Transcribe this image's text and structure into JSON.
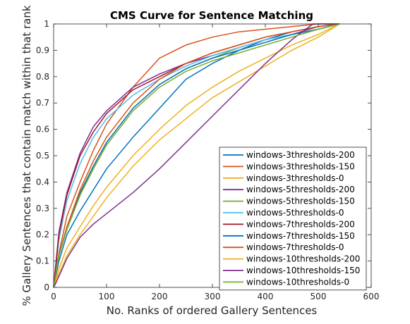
{
  "chart_data": {
    "type": "line",
    "title": "CMS Curve for Sentence Matching",
    "xlabel": "No. Ranks of ordered Gallery Sentences",
    "ylabel": "% Gallery Sentences that contain match within that rank",
    "xlim": [
      0,
      600
    ],
    "ylim": [
      0,
      1
    ],
    "xticks": [
      0,
      100,
      200,
      300,
      400,
      500,
      600
    ],
    "yticks": [
      0,
      0.1,
      0.2,
      0.3,
      0.4,
      0.5,
      0.6,
      0.7,
      0.8,
      0.9,
      1
    ],
    "xtick_labels": [
      "0",
      "100",
      "200",
      "300",
      "400",
      "500",
      "600"
    ],
    "ytick_labels": [
      "0",
      "0.1",
      "0.2",
      "0.3",
      "0.4",
      "0.5",
      "0.6",
      "0.7",
      "0.8",
      "0.9",
      "1"
    ],
    "grid": false,
    "legend_position": "bottom-right",
    "series": [
      {
        "name": "windows-3thresholds-200",
        "color": "#0072BD",
        "x": [
          0,
          10,
          25,
          50,
          75,
          100,
          150,
          200,
          250,
          300,
          350,
          400,
          450,
          500,
          540
        ],
        "y": [
          0,
          0.1,
          0.2,
          0.29,
          0.37,
          0.45,
          0.57,
          0.68,
          0.79,
          0.85,
          0.9,
          0.94,
          0.97,
          0.99,
          1
        ]
      },
      {
        "name": "windows-3thresholds-150",
        "color": "#D95319",
        "x": [
          0,
          10,
          25,
          50,
          75,
          100,
          150,
          200,
          250,
          300,
          350,
          400,
          450,
          500,
          540
        ],
        "y": [
          0,
          0.13,
          0.27,
          0.4,
          0.52,
          0.62,
          0.76,
          0.87,
          0.92,
          0.95,
          0.97,
          0.98,
          0.99,
          1,
          1
        ]
      },
      {
        "name": "windows-3thresholds-0",
        "color": "#EDB120",
        "x": [
          0,
          10,
          25,
          50,
          75,
          100,
          150,
          200,
          250,
          300,
          350,
          400,
          450,
          500,
          540
        ],
        "y": [
          0,
          0.07,
          0.15,
          0.23,
          0.31,
          0.38,
          0.5,
          0.6,
          0.69,
          0.76,
          0.82,
          0.87,
          0.92,
          0.96,
          1
        ]
      },
      {
        "name": "windows-5thresholds-200",
        "color": "#7E2F8E",
        "x": [
          0,
          10,
          25,
          50,
          75,
          100,
          150,
          200,
          250,
          300,
          350,
          400,
          450,
          500,
          540
        ],
        "y": [
          0,
          0.21,
          0.36,
          0.51,
          0.61,
          0.67,
          0.76,
          0.81,
          0.85,
          0.88,
          0.91,
          0.94,
          0.96,
          0.99,
          1
        ]
      },
      {
        "name": "windows-5thresholds-150",
        "color": "#77AC30",
        "x": [
          0,
          10,
          25,
          50,
          75,
          100,
          150,
          200,
          250,
          300,
          350,
          400,
          450,
          500,
          540
        ],
        "y": [
          0,
          0.12,
          0.22,
          0.35,
          0.46,
          0.55,
          0.68,
          0.77,
          0.83,
          0.87,
          0.91,
          0.94,
          0.96,
          0.98,
          1
        ]
      },
      {
        "name": "windows-5thresholds-0",
        "color": "#4DBEEE",
        "x": [
          0,
          10,
          25,
          50,
          75,
          100,
          150,
          200,
          250,
          300,
          350,
          400,
          450,
          500,
          540
        ],
        "y": [
          0,
          0.18,
          0.33,
          0.47,
          0.57,
          0.64,
          0.73,
          0.79,
          0.84,
          0.88,
          0.91,
          0.94,
          0.96,
          0.98,
          1
        ]
      },
      {
        "name": "windows-7thresholds-200",
        "color": "#A2142F",
        "x": [
          0,
          10,
          25,
          50,
          75,
          100,
          150,
          200,
          250,
          300,
          350,
          400,
          450,
          500,
          540
        ],
        "y": [
          0,
          0.2,
          0.35,
          0.5,
          0.59,
          0.66,
          0.75,
          0.8,
          0.85,
          0.89,
          0.92,
          0.95,
          0.97,
          0.99,
          1
        ]
      },
      {
        "name": "windows-7thresholds-150",
        "color": "#0072BD",
        "x": [
          0,
          10,
          25,
          50,
          75,
          100,
          150,
          200,
          250,
          300,
          350,
          400,
          450,
          500,
          540
        ],
        "y": [
          0,
          0.12,
          0.23,
          0.36,
          0.46,
          0.55,
          0.68,
          0.77,
          0.83,
          0.87,
          0.9,
          0.93,
          0.96,
          0.98,
          1
        ]
      },
      {
        "name": "windows-7thresholds-0",
        "color": "#D95319",
        "x": [
          0,
          10,
          25,
          50,
          75,
          100,
          150,
          200,
          250,
          300,
          350,
          400,
          450,
          500,
          540
        ],
        "y": [
          0,
          0.12,
          0.23,
          0.37,
          0.48,
          0.57,
          0.7,
          0.79,
          0.85,
          0.89,
          0.92,
          0.95,
          0.97,
          0.99,
          1
        ]
      },
      {
        "name": "windows-10thresholds-200",
        "color": "#EDB120",
        "x": [
          0,
          10,
          25,
          50,
          75,
          100,
          150,
          200,
          250,
          300,
          350,
          400,
          450,
          500,
          540
        ],
        "y": [
          0,
          0.05,
          0.12,
          0.2,
          0.27,
          0.34,
          0.46,
          0.56,
          0.64,
          0.72,
          0.78,
          0.84,
          0.9,
          0.95,
          1
        ]
      },
      {
        "name": "windows-10thresholds-150",
        "color": "#7E2F8E",
        "x": [
          0,
          5,
          25,
          50,
          75,
          100,
          150,
          200,
          250,
          300,
          350,
          400,
          450,
          490,
          540
        ],
        "y": [
          0,
          0.02,
          0.11,
          0.19,
          0.24,
          0.28,
          0.36,
          0.45,
          0.55,
          0.65,
          0.75,
          0.85,
          0.94,
          1,
          1
        ]
      },
      {
        "name": "windows-10thresholds-0",
        "color": "#77AC30",
        "x": [
          0,
          10,
          25,
          50,
          75,
          100,
          150,
          200,
          250,
          300,
          350,
          400,
          450,
          500,
          540
        ],
        "y": [
          0,
          0.12,
          0.22,
          0.35,
          0.45,
          0.54,
          0.67,
          0.76,
          0.82,
          0.86,
          0.89,
          0.92,
          0.95,
          0.98,
          1
        ]
      }
    ]
  }
}
